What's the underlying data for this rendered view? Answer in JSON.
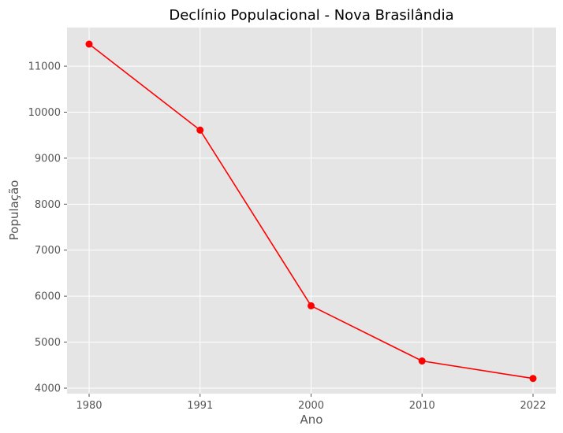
{
  "chart_data": {
    "type": "line",
    "title": "Declínio Populacional - Nova Brasilândia",
    "xlabel": "Ano",
    "ylabel": "População",
    "categories": [
      "1980",
      "1991",
      "2000",
      "2010",
      "2022"
    ],
    "series": [
      {
        "values": [
          11480,
          9610,
          5790,
          4590,
          4210
        ]
      }
    ],
    "ylim": [
      3880,
      11840
    ],
    "yticks": [
      4000,
      5000,
      6000,
      7000,
      8000,
      9000,
      10000,
      11000
    ],
    "grid": true,
    "line_color": "#ff0000",
    "plot_background": "#e5e5e5",
    "grid_color": "#ffffff"
  }
}
